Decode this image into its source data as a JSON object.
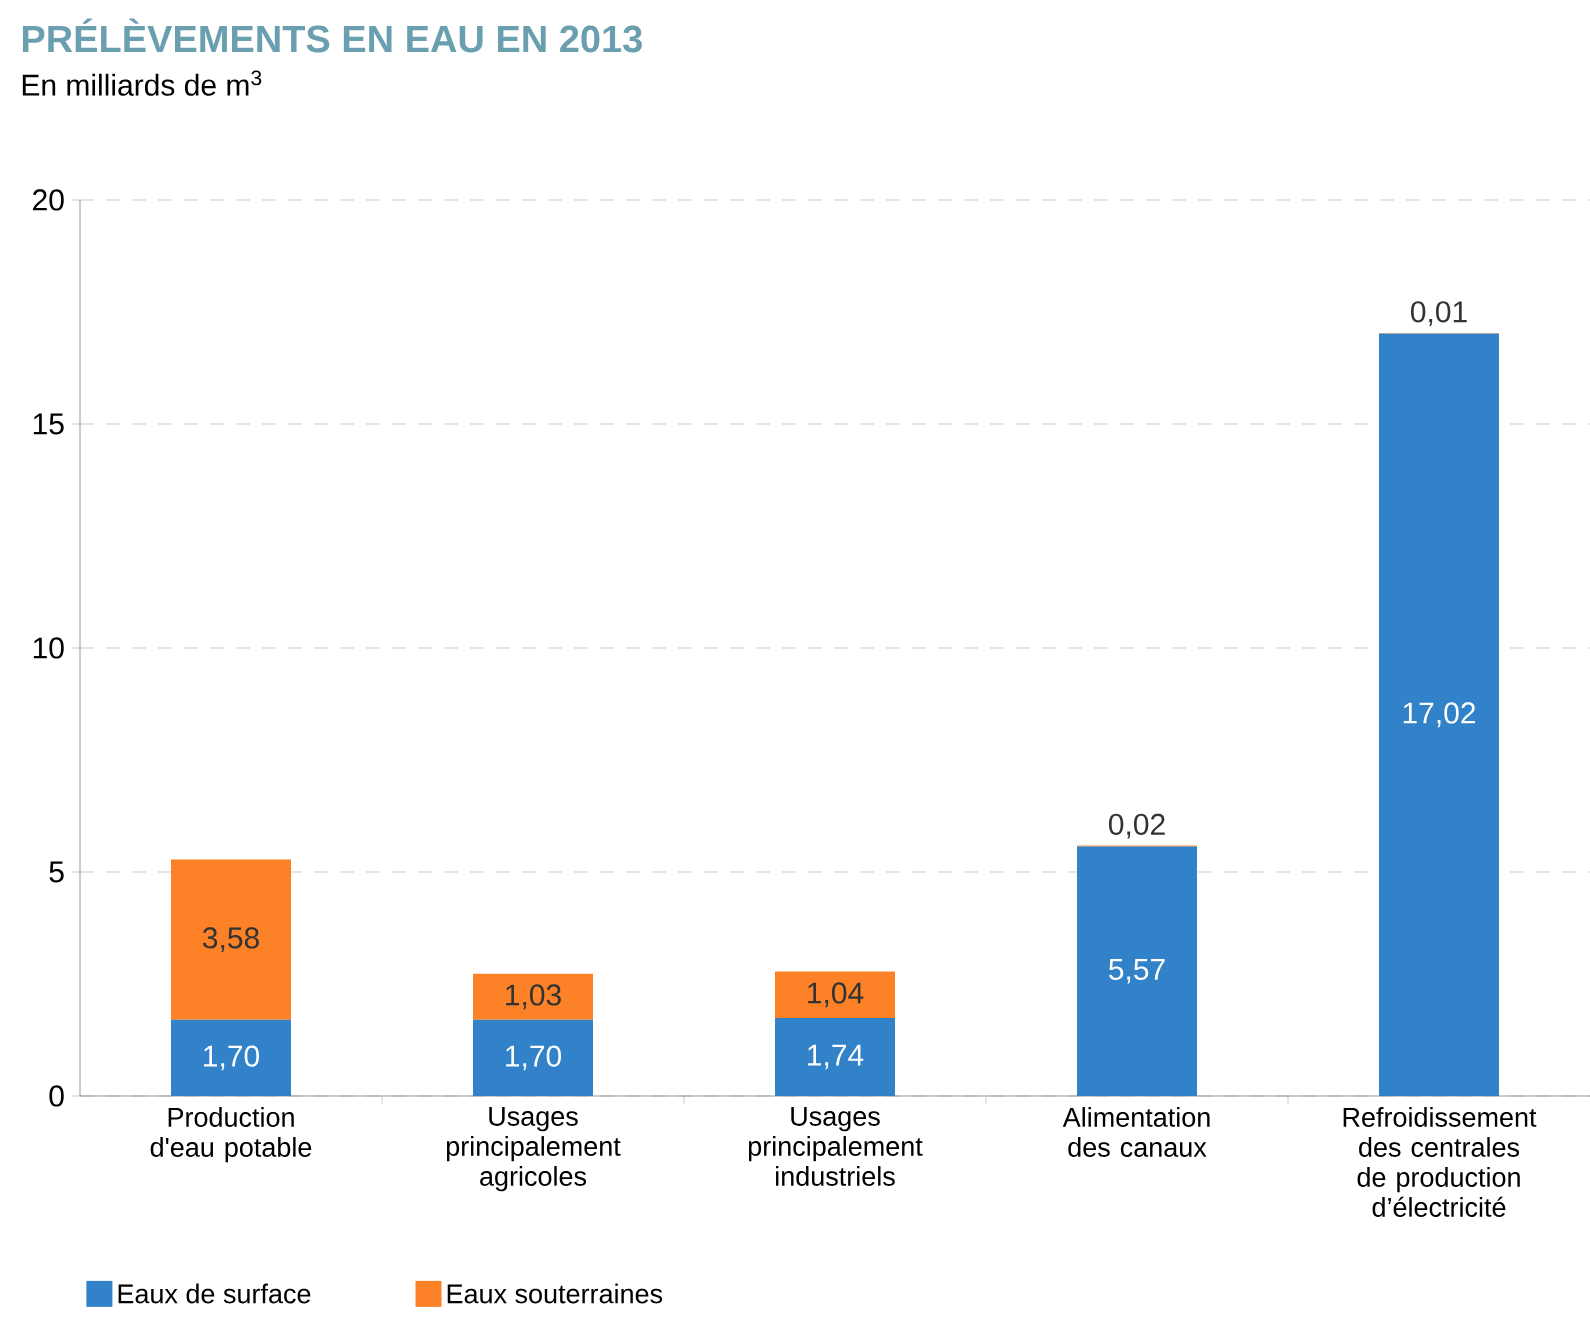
{
  "chart_data": {
    "type": "bar",
    "title": "PRÉLÈVEMENTS EN EAU EN 2013",
    "subtitle": "En milliards de m$^{3}$",
    "categories": [
      "Production d'eau potable",
      "Usages principalement agricoles",
      "Usages principalement industriels",
      "Alimentation des canaux",
      "Refroidissement des centrales de production d’électricité"
    ],
    "series": [
      {
        "name": "Eaux de surface",
        "color": "#3182c8",
        "values": [
          1.7,
          1.7,
          1.74,
          5.57,
          17.02
        ],
        "value_labels": [
          "1,70",
          "1,70",
          "1,74",
          "5,57",
          "17,02"
        ]
      },
      {
        "name": "Eaux souterraines",
        "color": "#fd8127",
        "values": [
          3.58,
          1.03,
          1.04,
          0.02,
          0.01
        ],
        "value_labels": [
          "3,58",
          "1,03",
          "1,04",
          "0,02",
          "0,01"
        ]
      }
    ],
    "stacked": true,
    "ylim": [
      0,
      20
    ],
    "yticks": [
      0,
      5,
      10,
      15,
      20
    ],
    "grid": "y",
    "legend": "bottom left"
  }
}
